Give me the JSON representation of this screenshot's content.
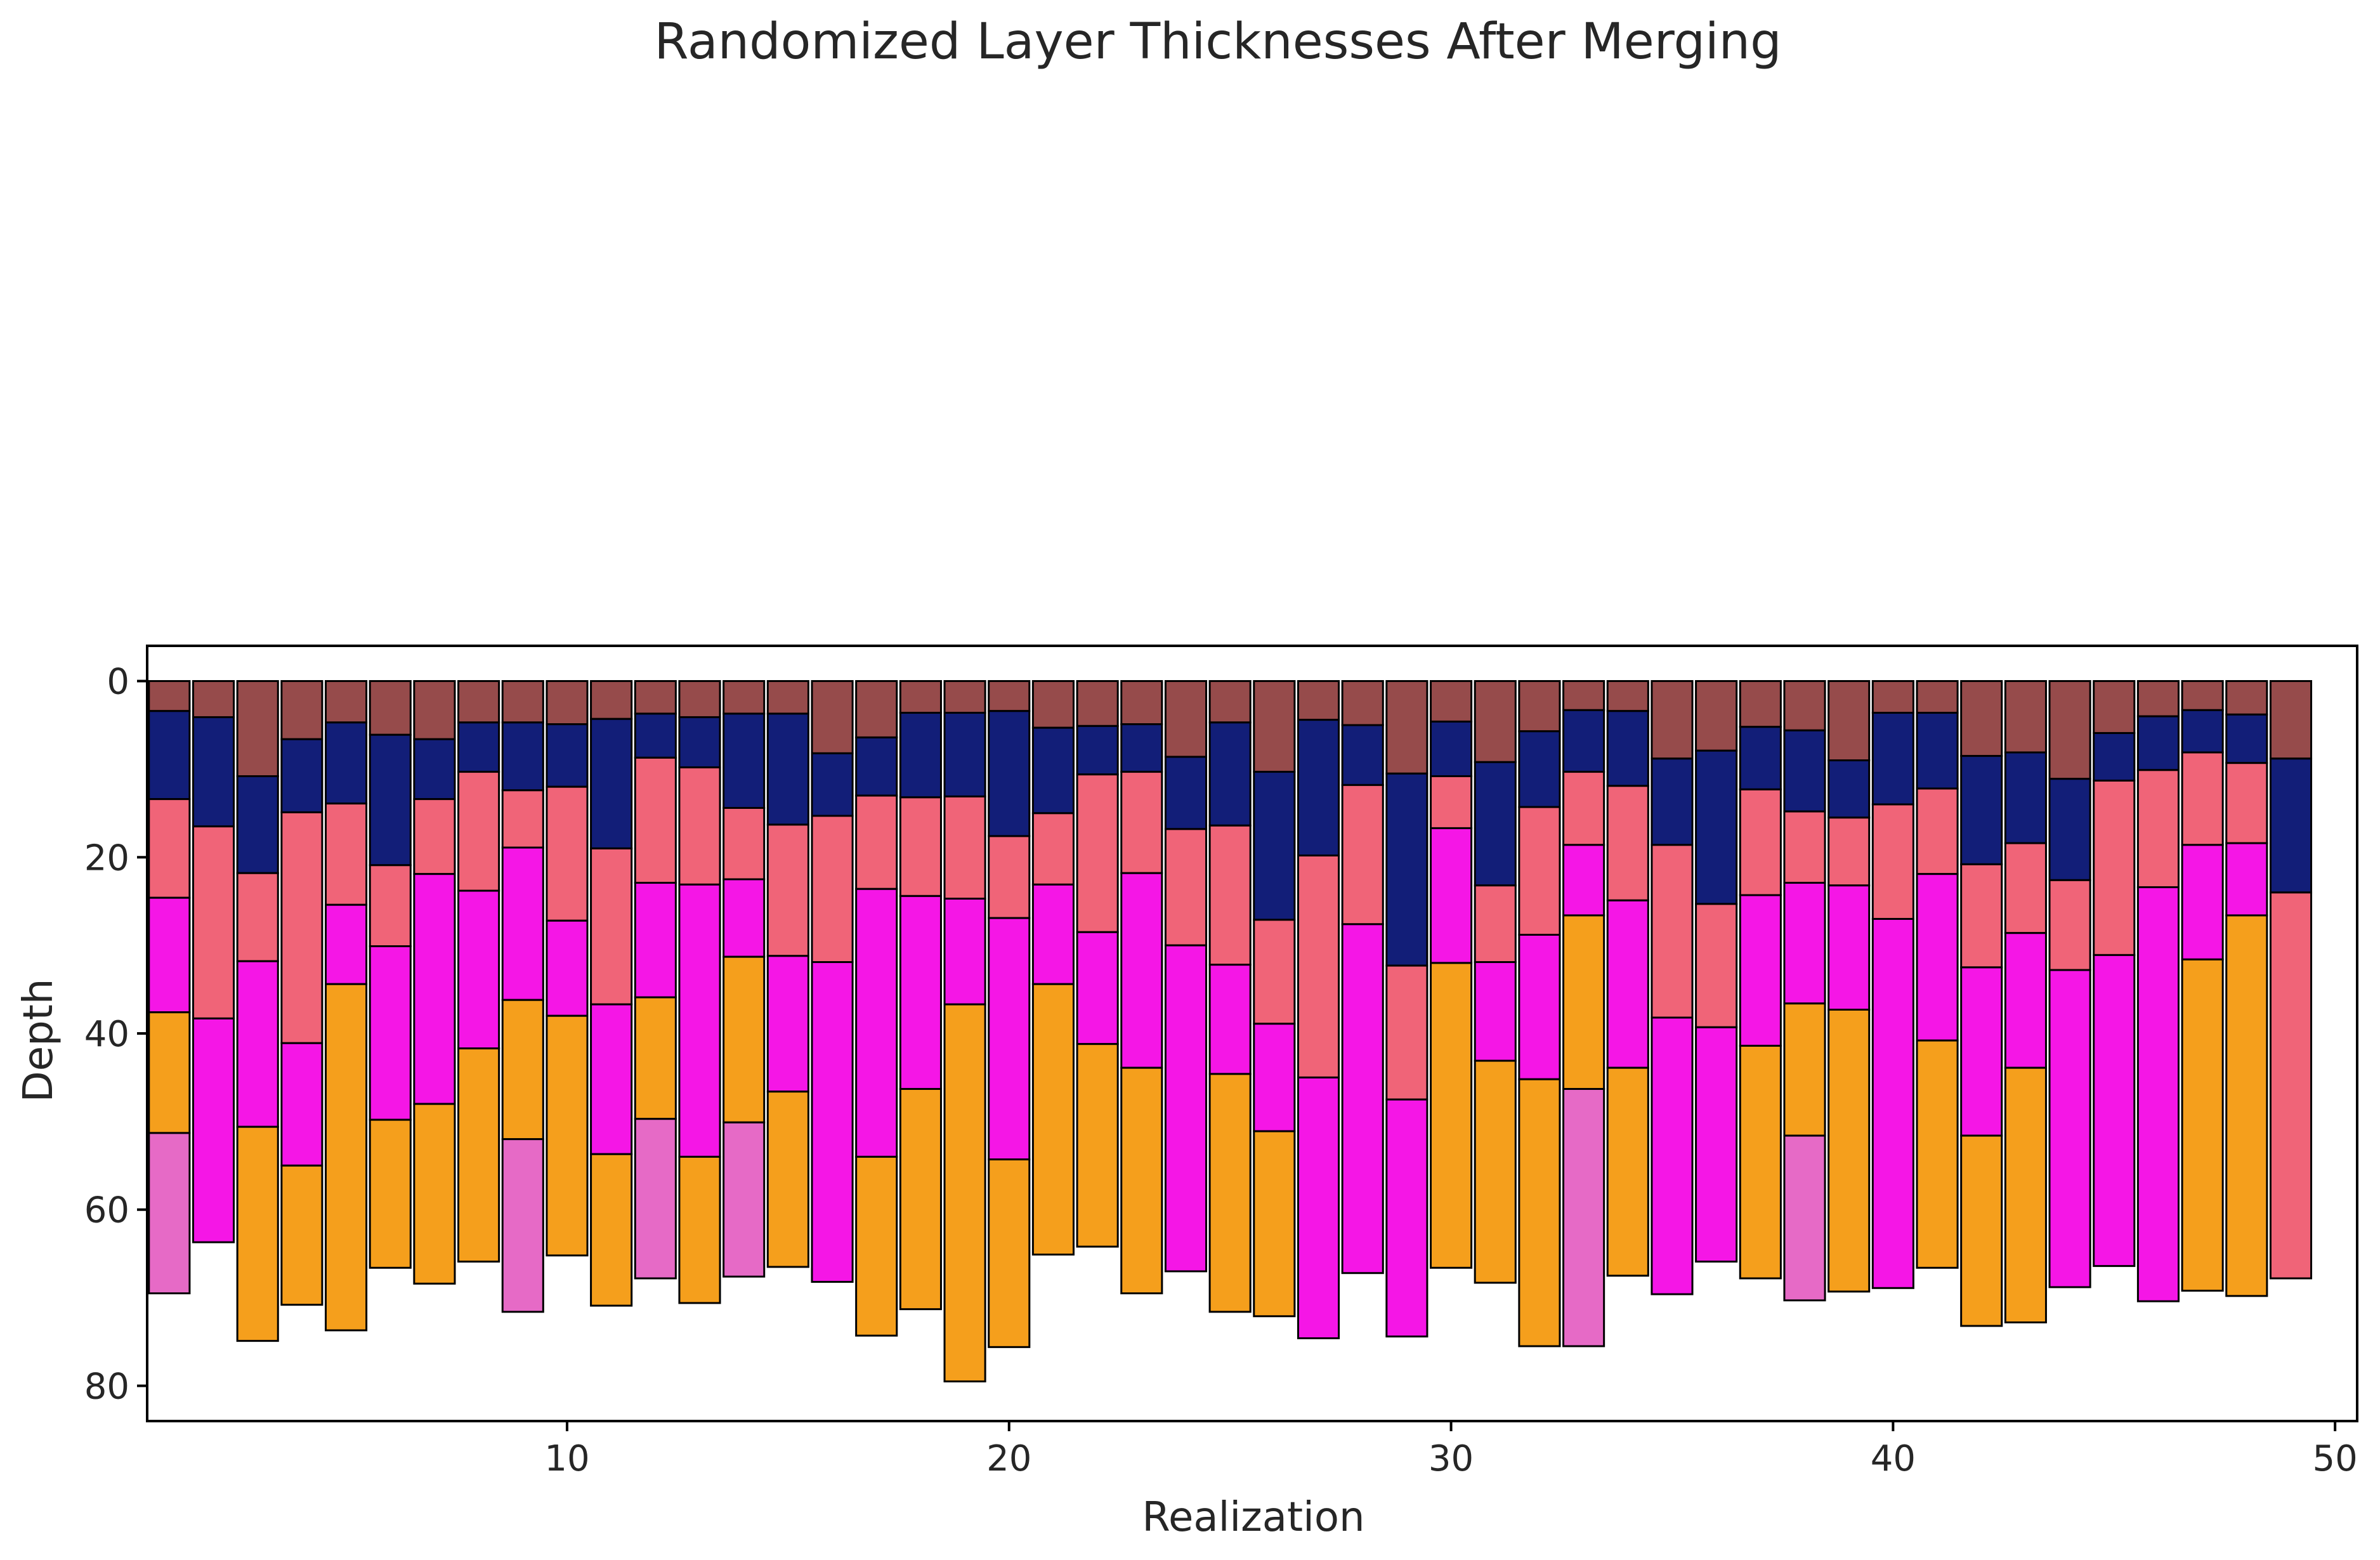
{
  "chart_data": {
    "type": "bar",
    "subtype": "stacked-depth-columns",
    "title": "Randomized Layer Thicknesses After Merging",
    "xlabel": "Realization",
    "ylabel": "Depth",
    "xlim": [
      0.5,
      50.5
    ],
    "ylim": [
      84,
      -4
    ],
    "y_inverted": true,
    "x_ticks": [
      10,
      20,
      30,
      40,
      50
    ],
    "y_ticks": [
      0,
      20,
      40,
      60,
      80
    ],
    "grid": false,
    "legend": "none",
    "bar_width": 0.92,
    "colors": {
      "brown": "#964B4B",
      "navy": "#121E78",
      "salmon": "#F06478",
      "magenta": "#F516E6",
      "orange": "#F59F1C",
      "pink": "#E66AC6"
    },
    "realizations": [
      {
        "x": 1,
        "boundaries": [
          0,
          3.4,
          13.4,
          24.6,
          37.6,
          51.3,
          69.5
        ],
        "colors": [
          "brown",
          "navy",
          "salmon",
          "magenta",
          "orange",
          "pink"
        ]
      },
      {
        "x": 2,
        "boundaries": [
          0,
          4.1,
          16.5,
          38.3,
          63.7
        ],
        "colors": [
          "brown",
          "navy",
          "salmon",
          "magenta"
        ]
      },
      {
        "x": 3,
        "boundaries": [
          0,
          10.8,
          21.8,
          31.8,
          50.6,
          74.9
        ],
        "colors": [
          "brown",
          "navy",
          "salmon",
          "magenta",
          "orange"
        ]
      },
      {
        "x": 4,
        "boundaries": [
          0,
          6.6,
          14.9,
          41.1,
          55,
          70.8
        ],
        "colors": [
          "brown",
          "navy",
          "salmon",
          "magenta",
          "orange"
        ]
      },
      {
        "x": 5,
        "boundaries": [
          0,
          4.7,
          13.9,
          25.4,
          34.4,
          73.7
        ],
        "colors": [
          "brown",
          "navy",
          "salmon",
          "magenta",
          "orange"
        ]
      },
      {
        "x": 6,
        "boundaries": [
          0,
          6.1,
          20.9,
          30.1,
          49.8,
          66.6
        ],
        "colors": [
          "brown",
          "navy",
          "salmon",
          "magenta",
          "orange"
        ]
      },
      {
        "x": 7,
        "boundaries": [
          0,
          6.6,
          13.4,
          21.9,
          48,
          68.4
        ],
        "colors": [
          "brown",
          "navy",
          "salmon",
          "magenta",
          "orange"
        ]
      },
      {
        "x": 8,
        "boundaries": [
          0,
          4.7,
          10.3,
          23.8,
          41.7,
          65.9
        ],
        "colors": [
          "brown",
          "navy",
          "salmon",
          "magenta",
          "orange"
        ]
      },
      {
        "x": 9,
        "boundaries": [
          0,
          4.7,
          12.4,
          18.9,
          36.2,
          52,
          71.6
        ],
        "colors": [
          "brown",
          "navy",
          "salmon",
          "magenta",
          "orange",
          "pink"
        ]
      },
      {
        "x": 10,
        "boundaries": [
          0,
          4.9,
          12,
          27.2,
          38,
          65.2
        ],
        "colors": [
          "brown",
          "navy",
          "salmon",
          "magenta",
          "orange"
        ]
      },
      {
        "x": 11,
        "boundaries": [
          0,
          4.3,
          19,
          36.7,
          53.7,
          70.9
        ],
        "colors": [
          "brown",
          "navy",
          "salmon",
          "magenta",
          "orange"
        ]
      },
      {
        "x": 12,
        "boundaries": [
          0,
          3.7,
          8.7,
          22.9,
          35.9,
          49.7,
          67.8
        ],
        "colors": [
          "brown",
          "navy",
          "salmon",
          "magenta",
          "orange",
          "pink"
        ]
      },
      {
        "x": 13,
        "boundaries": [
          0,
          4.1,
          9.8,
          23.1,
          54,
          70.6
        ],
        "colors": [
          "brown",
          "navy",
          "salmon",
          "magenta",
          "orange"
        ]
      },
      {
        "x": 14,
        "boundaries": [
          0,
          3.7,
          14.4,
          22.5,
          31.3,
          50.1,
          67.6
        ],
        "colors": [
          "brown",
          "navy",
          "salmon",
          "magenta",
          "orange",
          "pink"
        ]
      },
      {
        "x": 15,
        "boundaries": [
          0,
          3.7,
          16.3,
          31.2,
          46.6,
          66.5
        ],
        "colors": [
          "brown",
          "navy",
          "salmon",
          "magenta",
          "orange"
        ]
      },
      {
        "x": 16,
        "boundaries": [
          0,
          8.2,
          15.3,
          31.9,
          68.2
        ],
        "colors": [
          "brown",
          "navy",
          "salmon",
          "magenta"
        ]
      },
      {
        "x": 17,
        "boundaries": [
          0,
          6.4,
          13,
          23.6,
          54,
          74.3
        ],
        "colors": [
          "brown",
          "navy",
          "salmon",
          "magenta",
          "orange"
        ]
      },
      {
        "x": 18,
        "boundaries": [
          0,
          3.6,
          13.2,
          24.4,
          46.3,
          71.3
        ],
        "colors": [
          "brown",
          "navy",
          "salmon",
          "magenta",
          "orange"
        ]
      },
      {
        "x": 19,
        "boundaries": [
          0,
          3.6,
          13.1,
          24.7,
          36.7,
          79.5
        ],
        "colors": [
          "brown",
          "navy",
          "salmon",
          "magenta",
          "orange"
        ]
      },
      {
        "x": 20,
        "boundaries": [
          0,
          3.4,
          17.6,
          26.9,
          54.3,
          75.6
        ],
        "colors": [
          "brown",
          "navy",
          "salmon",
          "magenta",
          "orange"
        ]
      },
      {
        "x": 21,
        "boundaries": [
          0,
          5.3,
          15,
          23.1,
          34.4,
          65.1
        ],
        "colors": [
          "brown",
          "navy",
          "salmon",
          "magenta",
          "orange"
        ]
      },
      {
        "x": 22,
        "boundaries": [
          0,
          5.1,
          10.6,
          28.5,
          41.2,
          64.2
        ],
        "colors": [
          "brown",
          "navy",
          "salmon",
          "magenta",
          "orange"
        ]
      },
      {
        "x": 23,
        "boundaries": [
          0,
          4.9,
          10.3,
          21.8,
          43.9,
          69.5
        ],
        "colors": [
          "brown",
          "navy",
          "salmon",
          "magenta",
          "orange"
        ]
      },
      {
        "x": 24,
        "boundaries": [
          0,
          8.6,
          16.8,
          30,
          67
        ],
        "colors": [
          "brown",
          "navy",
          "salmon",
          "magenta"
        ]
      },
      {
        "x": 25,
        "boundaries": [
          0,
          4.7,
          16.4,
          32.2,
          44.6,
          71.6
        ],
        "colors": [
          "brown",
          "navy",
          "salmon",
          "magenta",
          "orange"
        ]
      },
      {
        "x": 26,
        "boundaries": [
          0,
          10.3,
          27.1,
          38.9,
          51.1,
          72.1
        ],
        "colors": [
          "brown",
          "navy",
          "salmon",
          "magenta",
          "orange"
        ]
      },
      {
        "x": 27,
        "boundaries": [
          0,
          4.4,
          19.8,
          45,
          74.6
        ],
        "colors": [
          "brown",
          "navy",
          "salmon",
          "magenta"
        ]
      },
      {
        "x": 28,
        "boundaries": [
          0,
          5,
          11.8,
          27.6,
          67.2
        ],
        "colors": [
          "brown",
          "navy",
          "salmon",
          "magenta"
        ]
      },
      {
        "x": 29,
        "boundaries": [
          0,
          10.5,
          32.3,
          47.5,
          74.4
        ],
        "colors": [
          "brown",
          "navy",
          "salmon",
          "magenta"
        ]
      },
      {
        "x": 30,
        "boundaries": [
          0,
          4.6,
          10.8,
          16.7,
          32,
          66.6
        ],
        "colors": [
          "brown",
          "navy",
          "salmon",
          "magenta",
          "orange"
        ]
      },
      {
        "x": 31,
        "boundaries": [
          0,
          9.2,
          23.2,
          31.9,
          43.1,
          68.3
        ],
        "colors": [
          "brown",
          "navy",
          "salmon",
          "magenta",
          "orange"
        ]
      },
      {
        "x": 32,
        "boundaries": [
          0,
          5.7,
          14.3,
          28.8,
          45.2,
          75.5
        ],
        "colors": [
          "brown",
          "navy",
          "salmon",
          "magenta",
          "orange"
        ]
      },
      {
        "x": 33,
        "boundaries": [
          0,
          3.3,
          10.3,
          18.6,
          26.6,
          46.3,
          75.5
        ],
        "colors": [
          "brown",
          "navy",
          "salmon",
          "magenta",
          "orange",
          "pink"
        ]
      },
      {
        "x": 34,
        "boundaries": [
          0,
          3.4,
          11.9,
          24.9,
          43.9,
          67.5
        ],
        "colors": [
          "brown",
          "navy",
          "salmon",
          "magenta",
          "orange"
        ]
      },
      {
        "x": 35,
        "boundaries": [
          0,
          8.8,
          18.6,
          38.2,
          69.6
        ],
        "colors": [
          "brown",
          "navy",
          "salmon",
          "magenta"
        ]
      },
      {
        "x": 36,
        "boundaries": [
          0,
          7.9,
          25.3,
          39.3,
          65.9
        ],
        "colors": [
          "brown",
          "navy",
          "salmon",
          "magenta"
        ]
      },
      {
        "x": 37,
        "boundaries": [
          0,
          5.2,
          12.3,
          24.3,
          41.4,
          67.8
        ],
        "colors": [
          "brown",
          "navy",
          "salmon",
          "magenta",
          "orange"
        ]
      },
      {
        "x": 38,
        "boundaries": [
          0,
          5.6,
          14.8,
          22.9,
          36.6,
          51.6,
          70.3
        ],
        "colors": [
          "brown",
          "navy",
          "salmon",
          "magenta",
          "orange",
          "pink"
        ]
      },
      {
        "x": 39,
        "boundaries": [
          0,
          9,
          15.5,
          23.2,
          37.3,
          69.3
        ],
        "colors": [
          "brown",
          "navy",
          "salmon",
          "magenta",
          "orange"
        ]
      },
      {
        "x": 40,
        "boundaries": [
          0,
          3.6,
          14,
          27,
          68.9
        ],
        "colors": [
          "brown",
          "navy",
          "salmon",
          "magenta"
        ]
      },
      {
        "x": 41,
        "boundaries": [
          0,
          3.6,
          12.2,
          21.9,
          40.8,
          66.6
        ],
        "colors": [
          "brown",
          "navy",
          "salmon",
          "magenta",
          "orange"
        ]
      },
      {
        "x": 42,
        "boundaries": [
          0,
          8.5,
          20.8,
          32.5,
          51.6,
          73.2
        ],
        "colors": [
          "brown",
          "navy",
          "salmon",
          "magenta",
          "orange"
        ]
      },
      {
        "x": 43,
        "boundaries": [
          0,
          8.1,
          18.4,
          28.6,
          43.9,
          72.8
        ],
        "colors": [
          "brown",
          "navy",
          "salmon",
          "magenta",
          "orange"
        ]
      },
      {
        "x": 44,
        "boundaries": [
          0,
          11.1,
          22.6,
          32.8,
          68.8
        ],
        "colors": [
          "brown",
          "navy",
          "salmon",
          "magenta"
        ]
      },
      {
        "x": 45,
        "boundaries": [
          0,
          5.9,
          11.3,
          31.1,
          66.4
        ],
        "colors": [
          "brown",
          "navy",
          "salmon",
          "magenta"
        ]
      },
      {
        "x": 46,
        "boundaries": [
          0,
          4,
          10.1,
          23.4,
          70.4
        ],
        "colors": [
          "brown",
          "navy",
          "salmon",
          "magenta"
        ]
      },
      {
        "x": 47,
        "boundaries": [
          0,
          3.3,
          8.1,
          18.6,
          31.6,
          69.2
        ],
        "colors": [
          "brown",
          "navy",
          "salmon",
          "magenta",
          "orange"
        ]
      },
      {
        "x": 48,
        "boundaries": [
          0,
          3.8,
          9.3,
          18.4,
          26.6,
          69.8
        ],
        "colors": [
          "brown",
          "navy",
          "salmon",
          "magenta",
          "orange"
        ]
      },
      {
        "x": 49,
        "boundaries": [
          0,
          8.8,
          24,
          67.8
        ],
        "colors": [
          "brown",
          "navy",
          "salmon"
        ]
      }
    ]
  }
}
